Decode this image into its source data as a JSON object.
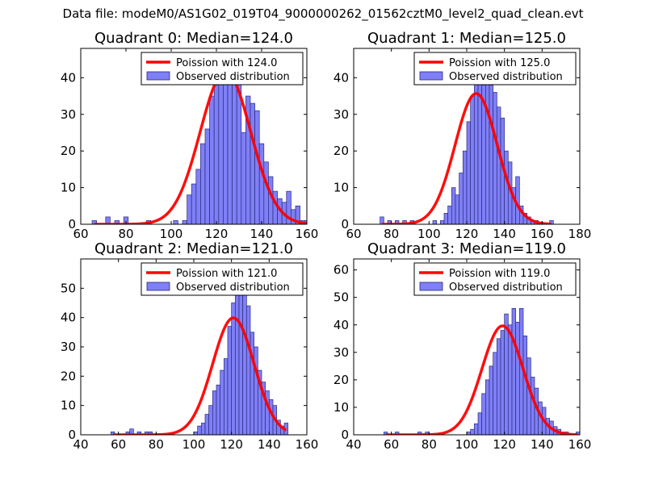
{
  "figure": {
    "title": "Data file: modeM0/AS1G02_019T04_9000000262_01562cztM0_level2_quad_clean.evt"
  },
  "colors": {
    "bar_fill": "#7f7ff7",
    "bar_edge": "#2a2a7a",
    "curve": "#ff0000"
  },
  "chart_data": [
    {
      "type": "bar",
      "title": "Quadrant 0: Median=124.0",
      "legend": {
        "placement": "top-right",
        "curve_label": "Poission with 124.0",
        "hist_label": "Observed distribution"
      },
      "mean": 124.0,
      "xlim": [
        60,
        160
      ],
      "ylim": [
        0,
        48
      ],
      "xticks": [
        60,
        80,
        100,
        120,
        140,
        160
      ],
      "yticks": [
        0,
        10,
        20,
        30,
        40
      ],
      "bin_start": 65,
      "bin_width": 2,
      "values": [
        1,
        0,
        0,
        2,
        0,
        1,
        0,
        2,
        0,
        0,
        0,
        0,
        1,
        0,
        0,
        0,
        0,
        0,
        1,
        0,
        1,
        8,
        11,
        15,
        22,
        26,
        35,
        38,
        40,
        41,
        39,
        42,
        39,
        25,
        35,
        33,
        31,
        22,
        17,
        13,
        9,
        7,
        6,
        9,
        4,
        5,
        1,
        1
      ]
    },
    {
      "type": "bar",
      "title": "Quadrant 1: Median=125.0",
      "legend": {
        "placement": "top-right",
        "curve_label": "Poission with 125.0",
        "hist_label": "Observed distribution"
      },
      "mean": 125.0,
      "xlim": [
        60,
        180
      ],
      "ylim": [
        0,
        48
      ],
      "xticks": [
        60,
        80,
        100,
        120,
        140,
        160,
        180
      ],
      "yticks": [
        0,
        10,
        20,
        30,
        40
      ],
      "bin_start": 74,
      "bin_width": 2,
      "values": [
        2,
        0,
        1,
        0,
        1,
        0,
        1,
        0,
        1,
        0,
        0,
        0,
        0,
        0,
        1,
        0,
        1,
        3,
        5,
        10,
        8,
        14,
        20,
        28,
        35,
        40,
        42,
        38,
        41,
        38,
        36,
        32,
        29,
        20,
        17,
        10,
        13,
        5,
        3,
        2,
        1,
        1,
        0,
        0,
        0,
        1
      ]
    },
    {
      "type": "bar",
      "title": "Quadrant 2: Median=121.0",
      "legend": {
        "placement": "top-right",
        "curve_label": "Poission with 121.0",
        "hist_label": "Observed distribution"
      },
      "mean": 121.0,
      "xlim": [
        40,
        160
      ],
      "ylim": [
        0,
        60
      ],
      "xticks": [
        40,
        60,
        80,
        100,
        120,
        140,
        160
      ],
      "yticks": [
        0,
        10,
        20,
        30,
        40,
        50
      ],
      "bin_start": 56,
      "bin_width": 2,
      "values": [
        1,
        0,
        0,
        0,
        1,
        2,
        0,
        1,
        0,
        1,
        1,
        0,
        0,
        0,
        0,
        0,
        0,
        0,
        0,
        0,
        0,
        0,
        1,
        3,
        4,
        7,
        10,
        15,
        17,
        22,
        26,
        37,
        45,
        52,
        57,
        49,
        44,
        35,
        30,
        22,
        18,
        15,
        12,
        10,
        5,
        3,
        4
      ]
    },
    {
      "type": "bar",
      "title": "Quadrant 3: Median=119.0",
      "legend": {
        "placement": "top-right",
        "curve_label": "Poission with 119.0",
        "hist_label": "Observed distribution"
      },
      "mean": 119.0,
      "xlim": [
        40,
        160
      ],
      "ylim": [
        0,
        64
      ],
      "xticks": [
        40,
        60,
        80,
        100,
        120,
        140,
        160
      ],
      "yticks": [
        0,
        10,
        20,
        30,
        40,
        50,
        60
      ],
      "bin_start": 56,
      "bin_width": 2,
      "values": [
        1,
        0,
        0,
        1,
        0,
        0,
        0,
        0,
        0,
        1,
        0,
        1,
        0,
        0,
        0,
        0,
        0,
        0,
        0,
        0,
        0,
        0,
        1,
        2,
        4,
        8,
        15,
        20,
        25,
        30,
        35,
        38,
        44,
        40,
        46,
        41,
        46,
        36,
        28,
        21,
        17,
        12,
        10,
        6,
        5,
        3,
        2,
        1,
        1,
        0,
        0,
        1
      ]
    }
  ]
}
